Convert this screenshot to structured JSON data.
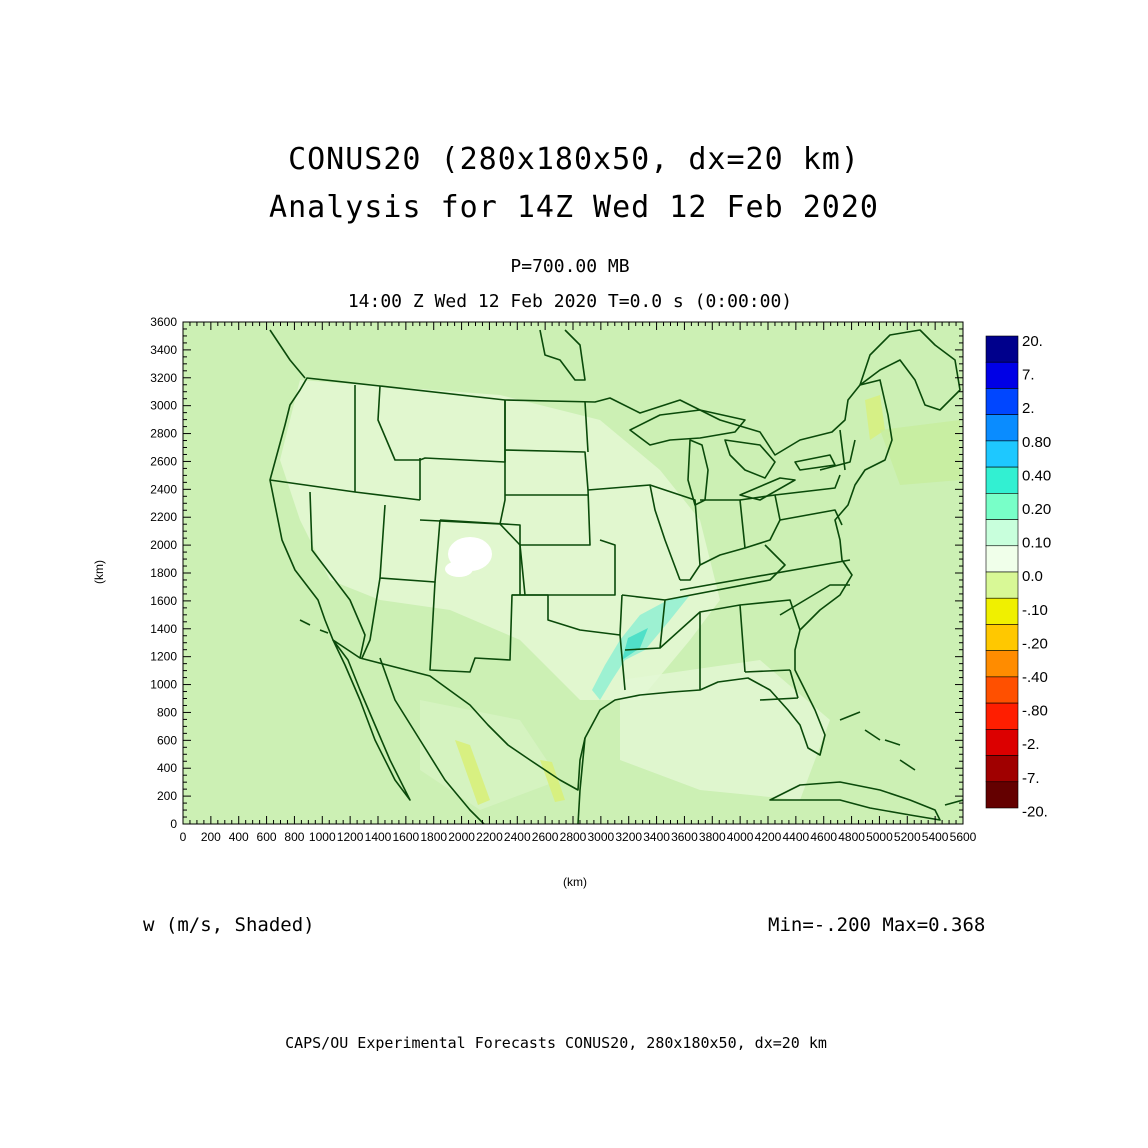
{
  "header": {
    "title_line1": "CONUS20 (280x180x50, dx=20 km)",
    "title_line2": "Analysis for 14Z Wed 12 Feb 2020",
    "pressure_level": "P=700.00 MB",
    "time_line": "14:00 Z Wed 12 Feb 2020    T=0.0 s (0:00:00)"
  },
  "axes": {
    "x_label": "(km)",
    "y_label": "(km)",
    "x_ticks": [
      "0",
      "200",
      "400",
      "600",
      "800",
      "1000",
      "1200",
      "1400",
      "1600",
      "1800",
      "2000",
      "2200",
      "2400",
      "2600",
      "2800",
      "3000",
      "3200",
      "3400",
      "3600",
      "3800",
      "4000",
      "4200",
      "4400",
      "4600",
      "4800",
      "5000",
      "5200",
      "5400",
      "5600"
    ],
    "y_ticks": [
      "0",
      "200",
      "400",
      "600",
      "800",
      "1000",
      "1200",
      "1400",
      "1600",
      "1800",
      "2000",
      "2200",
      "2400",
      "2600",
      "2800",
      "3000",
      "3200",
      "3400",
      "3600"
    ],
    "x_range": [
      0,
      5600
    ],
    "y_range": [
      0,
      3600
    ]
  },
  "colorbar": {
    "labels": [
      "20.",
      "7.",
      "2.",
      "0.80",
      "0.40",
      "0.20",
      "0.10",
      "0.0",
      "-.10",
      "-.20",
      "-.40",
      "-.80",
      "-2.",
      "-7.",
      "-20."
    ],
    "colors": [
      "#00008c",
      "#0000e6",
      "#0046ff",
      "#0a8cff",
      "#1ec8ff",
      "#32f0d2",
      "#78ffc8",
      "#c8ffdc",
      "#f0ffea",
      "#d8f896",
      "#f0f000",
      "#ffc800",
      "#ff8c00",
      "#ff5000",
      "#ff1e00",
      "#dc0000",
      "#a00000",
      "#640000"
    ]
  },
  "map": {
    "background_color": "#ccf0b4",
    "boundary_color": "#0a4a0a",
    "features": [
      "US state boundaries",
      "coastlines",
      "Great Lakes",
      "Mexico",
      "Canada",
      "Cuba"
    ]
  },
  "footer": {
    "variable": "w (m/s, Shaded)",
    "minmax": "Min=-.200 Max=0.368",
    "credit": "CAPS/OU Experimental Forecasts  CONUS20, 280x180x50, dx=20 km"
  }
}
